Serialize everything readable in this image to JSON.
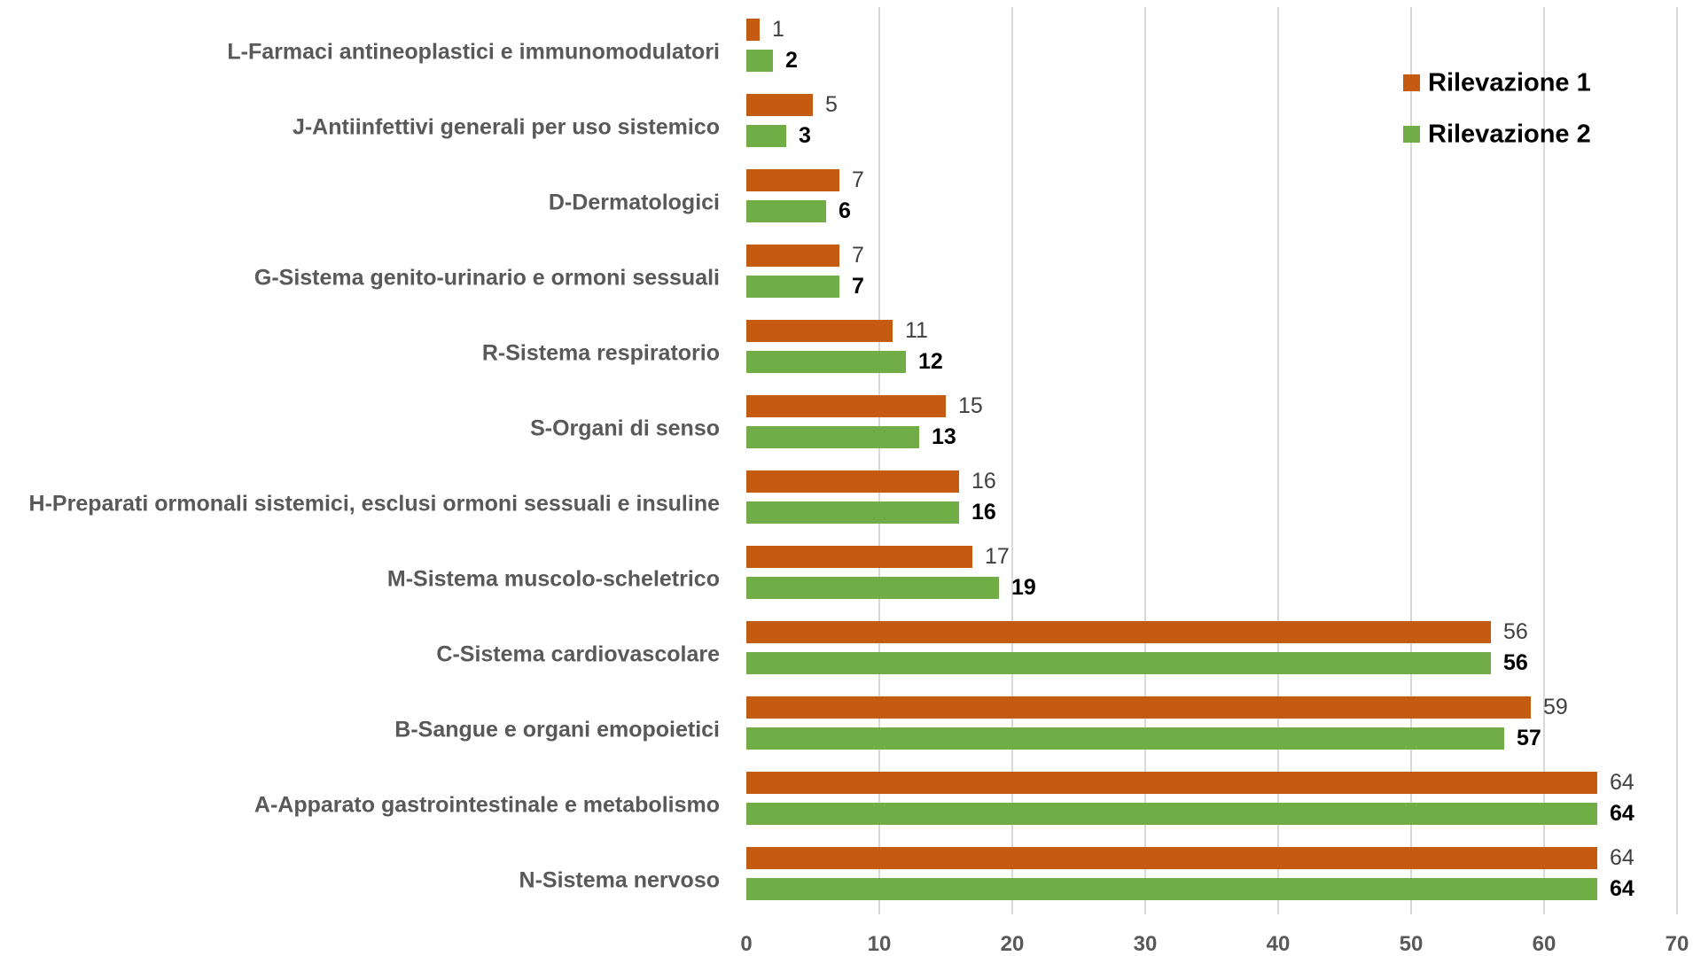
{
  "chart_data": {
    "type": "bar",
    "orientation": "horizontal",
    "categories": [
      "L-Farmaci antineoplastici e immunomodulatori",
      "J-Antiinfettivi generali per uso sistemico",
      "D-Dermatologici",
      "G-Sistema genito-urinario e ormoni sessuali",
      "R-Sistema respiratorio",
      "S-Organi di senso",
      "H-Preparati ormonali sistemici, esclusi ormoni sessuali e insuline",
      "M-Sistema muscolo-scheletrico",
      "C-Sistema cardiovascolare",
      "B-Sangue e organi emopoietici",
      "A-Apparato gastrointestinale e metabolismo",
      "N-Sistema nervoso"
    ],
    "series": [
      {
        "name": "Rilevazione 1",
        "color": "#C55A11",
        "values": [
          1,
          5,
          7,
          7,
          11,
          15,
          16,
          17,
          56,
          59,
          64,
          64
        ]
      },
      {
        "name": "Rilevazione 2",
        "color": "#70AD47",
        "values": [
          2,
          3,
          6,
          7,
          12,
          13,
          16,
          19,
          56,
          57,
          64,
          64
        ]
      }
    ],
    "xlim": [
      0,
      70
    ],
    "xticks": [
      0,
      10,
      20,
      30,
      40,
      50,
      60,
      70
    ],
    "grid": "vertical",
    "legend": "top-right",
    "data_labels": true
  }
}
